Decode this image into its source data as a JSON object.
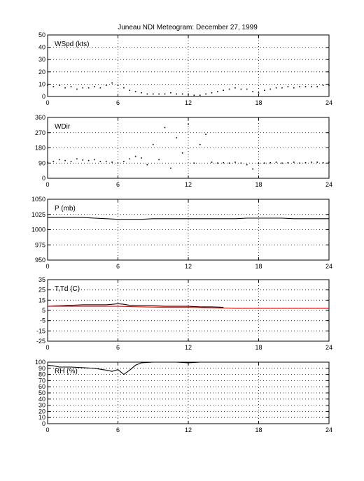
{
  "chart_data": {
    "title": "Juneau NDI Meteogram:   December 27, 1999",
    "x_ticks": [
      "0",
      "6",
      "12",
      "18",
      "24"
    ],
    "x_range": [
      0,
      24
    ],
    "panels": [
      {
        "label": "WSpd (kts)",
        "type": "scatter",
        "ylim": [
          0,
          50
        ],
        "y_ticks": [
          "0",
          "10",
          "20",
          "30",
          "40",
          "50"
        ],
        "y_tick_values": [
          0,
          10,
          20,
          30,
          40,
          50
        ],
        "color": "#000000",
        "series": [
          {
            "x": [
              0,
              0.5,
              1,
              1.5,
              2,
              2.5,
              3,
              3.5,
              4,
              4.5,
              5,
              5.5,
              6,
              6.5,
              7,
              7.5,
              8,
              8.5,
              9,
              9.5,
              10,
              10.5,
              11,
              11.5,
              12,
              12.5,
              13,
              13.5,
              14,
              14.5,
              15,
              15.5,
              16,
              16.5,
              17,
              17.5,
              18,
              18.5,
              19,
              19.5,
              20,
              20.5,
              21,
              21.5,
              22,
              22.5,
              23,
              23.5,
              24
            ],
            "y": [
              9,
              8,
              9,
              7,
              8,
              6,
              7,
              7,
              8,
              7,
              9,
              11,
              9,
              7,
              5,
              4,
              3,
              2,
              2,
              2,
              2,
              3,
              2,
              2,
              2,
              1,
              1,
              2,
              3,
              4,
              5,
              6,
              7,
              6,
              6,
              4,
              3,
              5,
              6,
              7,
              7,
              8,
              7,
              8,
              8,
              8,
              8,
              9,
              9
            ]
          }
        ]
      },
      {
        "label": "WDir",
        "type": "scatter",
        "ylim": [
          0,
          360
        ],
        "y_ticks": [
          "0",
          "90",
          "180",
          "270",
          "360"
        ],
        "y_tick_values": [
          0,
          90,
          180,
          270,
          360
        ],
        "color": "#000000",
        "series": [
          {
            "x": [
              0,
              0.5,
              1,
              1.5,
              2,
              2.5,
              3,
              3.5,
              4,
              4.5,
              5,
              5.5,
              6,
              6.5,
              7,
              7.5,
              8,
              8.5,
              9,
              9.5,
              10,
              10.5,
              11,
              11.5,
              12,
              12.5,
              13,
              13.5,
              14,
              14.5,
              15,
              15.5,
              16,
              16.5,
              17,
              17.5,
              18,
              18.5,
              19,
              19.5,
              20,
              20.5,
              21,
              21.5,
              22,
              22.5,
              23,
              23.5,
              24
            ],
            "y": [
              95,
              100,
              110,
              105,
              100,
              115,
              108,
              105,
              110,
              100,
              100,
              95,
              90,
              100,
              115,
              130,
              120,
              80,
              200,
              110,
              300,
              60,
              240,
              150,
              320,
              90,
              200,
              260,
              95,
              90,
              92,
              90,
              95,
              90,
              80,
              55,
              88,
              90,
              92,
              95,
              90,
              92,
              95,
              90,
              92,
              95,
              95,
              92,
              95
            ]
          }
        ]
      },
      {
        "label": "P (mb)",
        "type": "line",
        "ylim": [
          950,
          1050
        ],
        "y_ticks": [
          "950",
          "975",
          "1000",
          "1025",
          "1050"
        ],
        "y_tick_values": [
          950,
          975,
          1000,
          1025,
          1050
        ],
        "color": "#000000",
        "series": [
          {
            "x": [
              0,
              1,
              2,
              3,
              4,
              5,
              6,
              7,
              8,
              9,
              10,
              11,
              12,
              13,
              14,
              15,
              16,
              17,
              18,
              19,
              20,
              21,
              22,
              23,
              24
            ],
            "y": [
              1020,
              1020,
              1020,
              1020,
              1019,
              1018,
              1017,
              1017,
              1017,
              1018,
              1018,
              1018,
              1018,
              1018,
              1018,
              1018,
              1018,
              1019,
              1019,
              1019,
              1019,
              1018,
              1018,
              1018,
              1018
            ]
          }
        ]
      },
      {
        "label": "T,Td (C)",
        "type": "line",
        "ylim": [
          -25,
          35
        ],
        "y_ticks": [
          "-25",
          "-15",
          "-5",
          "5",
          "15",
          "25",
          "35"
        ],
        "y_tick_values": [
          -25,
          -15,
          -5,
          5,
          15,
          25,
          35
        ],
        "series": [
          {
            "color": "#000000",
            "x": [
              0,
              1,
              2,
              3,
              4,
              5,
              6,
              6.5,
              7,
              8,
              9,
              10,
              11,
              12,
              13,
              14,
              15
            ],
            "y": [
              9,
              9.5,
              10,
              10.5,
              10.5,
              10.5,
              11.5,
              11,
              10,
              9.5,
              9.5,
              9,
              9,
              9,
              8.5,
              8.5,
              8
            ]
          },
          {
            "color": "#ff0000",
            "x": [
              0,
              2,
              4,
              6,
              8,
              10,
              12,
              14,
              16,
              18,
              20,
              22,
              24
            ],
            "y": [
              9,
              9,
              9,
              9,
              8.5,
              8,
              8,
              7.5,
              7,
              7,
              7,
              7,
              7
            ]
          }
        ]
      },
      {
        "label": "RH (%)",
        "type": "line",
        "ylim": [
          0,
          100
        ],
        "y_ticks": [
          "0",
          "10",
          "20",
          "30",
          "40",
          "50",
          "60",
          "70",
          "80",
          "90",
          "100"
        ],
        "y_tick_values": [
          0,
          10,
          20,
          30,
          40,
          50,
          60,
          70,
          80,
          90,
          100
        ],
        "color": "#000000",
        "series": [
          {
            "x": [
              0,
              0.5,
              1,
              2,
              3,
              4,
              5,
              5.5,
              6,
              6.5,
              7,
              7.5,
              8,
              9,
              10,
              11,
              12,
              13,
              14,
              15,
              16,
              17,
              18,
              19,
              20,
              21,
              22,
              23,
              24
            ],
            "y": [
              95,
              94,
              92,
              92,
              91,
              90,
              87,
              85,
              88,
              80,
              87,
              95,
              99,
              100,
              100,
              100,
              99,
              100,
              100,
              100,
              100,
              100,
              100,
              100,
              100,
              100,
              100,
              100,
              100
            ]
          }
        ]
      }
    ]
  }
}
